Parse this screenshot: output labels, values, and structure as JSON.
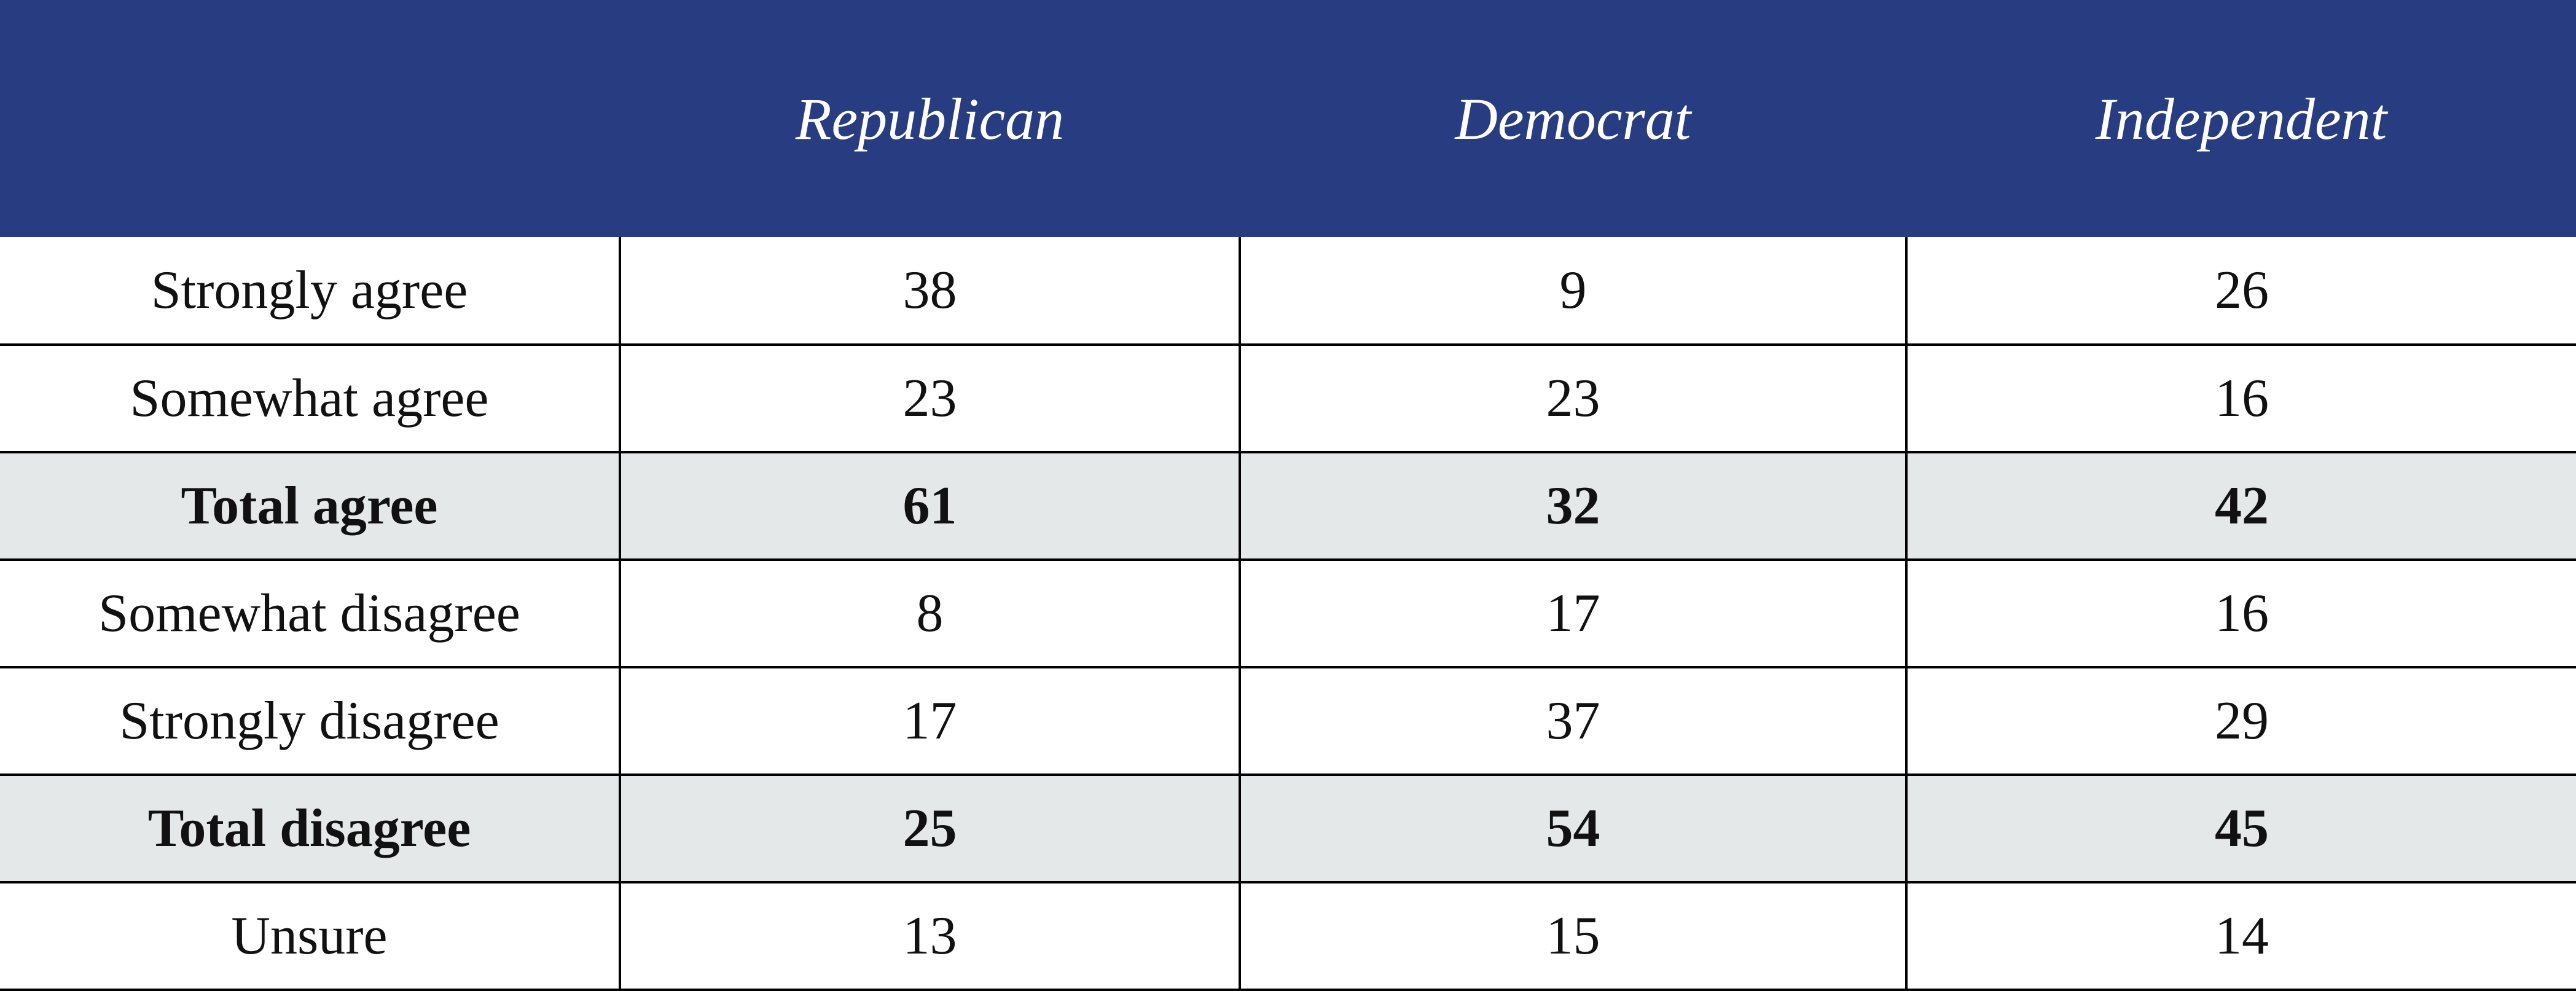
{
  "chart_data": {
    "type": "table",
    "columns": [
      "",
      "Republican",
      "Democrat",
      "Independent"
    ],
    "rows": [
      {
        "label": "Strongly agree",
        "values": [
          38,
          9,
          26
        ],
        "total": false
      },
      {
        "label": "Somewhat agree",
        "values": [
          23,
          23,
          16
        ],
        "total": false
      },
      {
        "label": "Total agree",
        "values": [
          61,
          32,
          42
        ],
        "total": true
      },
      {
        "label": "Somewhat disagree",
        "values": [
          8,
          17,
          16
        ],
        "total": false
      },
      {
        "label": "Strongly disagree",
        "values": [
          17,
          37,
          29
        ],
        "total": false
      },
      {
        "label": "Total disagree",
        "values": [
          25,
          54,
          45
        ],
        "total": true
      },
      {
        "label": "Unsure",
        "values": [
          13,
          15,
          14
        ],
        "total": false
      }
    ],
    "colors": {
      "header_background": "#283c81",
      "header_text": "#ffffff",
      "total_row_background": "#e5e8e8",
      "border": "#000000"
    }
  }
}
